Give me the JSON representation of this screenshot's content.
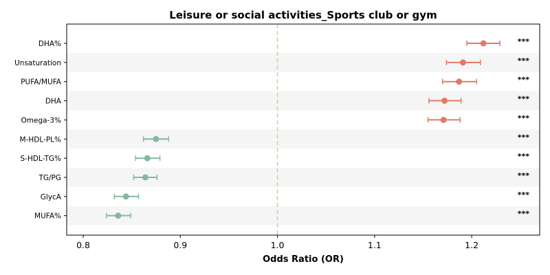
{
  "chart_data": {
    "type": "scatter",
    "subtype": "forest-plot",
    "title": "Leisure or social activities_Sports club or gym",
    "xlabel": "Odds Ratio (OR)",
    "ylabel": "",
    "xlim": [
      0.783,
      1.27
    ],
    "xticks": [
      0.8,
      0.9,
      1.0,
      1.1,
      1.2
    ],
    "xtick_labels": [
      "0.8",
      "0.9",
      "1.0",
      "1.1",
      "1.2"
    ],
    "reference_line": 1.0,
    "reference_line_style": "dashed",
    "alternating_row_shading": true,
    "grid": false,
    "colors": {
      "above_one": "#E07B63",
      "below_one": "#86B89E",
      "reference_line": "#F0C27B",
      "row_shade": "#F5F5F5"
    },
    "rows": [
      {
        "label": "DHA%",
        "or": 1.212,
        "ci_low": 1.195,
        "ci_high": 1.229,
        "sig": "***"
      },
      {
        "label": "Unsaturation",
        "or": 1.191,
        "ci_low": 1.174,
        "ci_high": 1.209,
        "sig": "***"
      },
      {
        "label": "PUFA/MUFA",
        "or": 1.187,
        "ci_low": 1.17,
        "ci_high": 1.205,
        "sig": "***"
      },
      {
        "label": "DHA",
        "or": 1.172,
        "ci_low": 1.156,
        "ci_high": 1.189,
        "sig": "***"
      },
      {
        "label": "Omega-3%",
        "or": 1.171,
        "ci_low": 1.155,
        "ci_high": 1.188,
        "sig": "***"
      },
      {
        "label": "M-HDL-PL%",
        "or": 0.875,
        "ci_low": 0.862,
        "ci_high": 0.888,
        "sig": "***"
      },
      {
        "label": "S-HDL-TG%",
        "or": 0.866,
        "ci_low": 0.854,
        "ci_high": 0.879,
        "sig": "***"
      },
      {
        "label": "TG/PG",
        "or": 0.864,
        "ci_low": 0.852,
        "ci_high": 0.876,
        "sig": "***"
      },
      {
        "label": "GlycA",
        "or": 0.844,
        "ci_low": 0.832,
        "ci_high": 0.857,
        "sig": "***"
      },
      {
        "label": "MUFA%",
        "or": 0.836,
        "ci_low": 0.824,
        "ci_high": 0.849,
        "sig": "***"
      }
    ]
  }
}
